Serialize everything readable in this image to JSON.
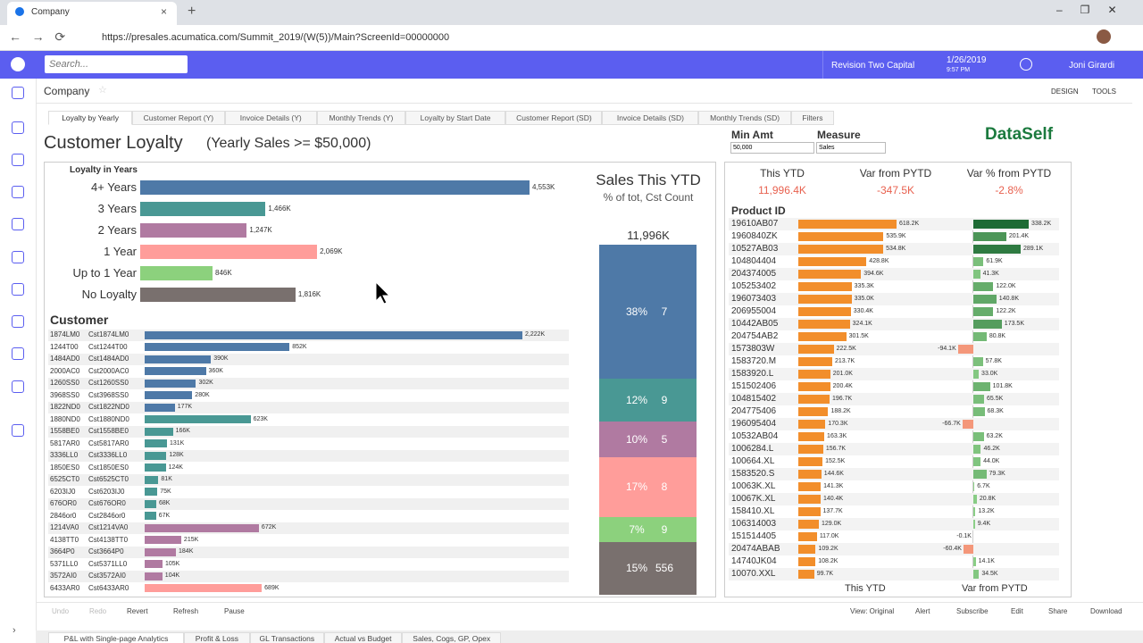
{
  "browser": {
    "tab_title": "Company",
    "url": "https://presales.acumatica.com/Summit_2019/(W(5))/Main?ScreenId=00000000"
  },
  "topbar": {
    "search": "Search...",
    "company": "Revision Two Capital",
    "date": "1/26/2019",
    "time": "9:57 PM",
    "user": "Joni Girardi"
  },
  "page": {
    "title": "Company",
    "design": "DESIGN",
    "tools": "TOOLS"
  },
  "tabs": [
    "Loyalty by Yearly",
    "Customer Report (Y)",
    "Invoice Details (Y)",
    "Monthly Trends (Y)",
    "Loyalty by Start Date",
    "Customer Report (SD)",
    "Invoice Details (SD)",
    "Monthly Trends (SD)",
    "Filters"
  ],
  "dashboard": {
    "title": "Customer Loyalty",
    "subtitle": "(Yearly Sales >= $50,000)"
  },
  "loyalty": {
    "header": "Loyalty in Years",
    "categories": [
      "4+ Years",
      "3 Years",
      "2 Years",
      "1 Year",
      "Up to 1 Year",
      "No Loyalty"
    ],
    "values": [
      4553,
      1466,
      1247,
      2069,
      846,
      1816
    ],
    "value_labels": [
      "4,553K",
      "1,466K",
      "1,247K",
      "2,069K",
      "846K",
      "1,816K"
    ],
    "colors": [
      "#4e79a7",
      "#499894",
      "#b07aa1",
      "#ff9d9a",
      "#8cd17d",
      "#79706e"
    ]
  },
  "customers": {
    "header": "Customer",
    "rows": [
      {
        "id": "1874LM0",
        "name": "Cst1874LM0",
        "value": 2222,
        "label": "2,222K",
        "color": "#4e79a7"
      },
      {
        "id": "1244T00",
        "name": "Cst1244T00",
        "value": 852,
        "label": "852K",
        "color": "#4e79a7"
      },
      {
        "id": "1484AD0",
        "name": "Cst1484AD0",
        "value": 390,
        "label": "390K",
        "color": "#4e79a7"
      },
      {
        "id": "2000AC0",
        "name": "Cst2000AC0",
        "value": 360,
        "label": "360K",
        "color": "#4e79a7"
      },
      {
        "id": "1260SS0",
        "name": "Cst1260SS0",
        "value": 302,
        "label": "302K",
        "color": "#4e79a7"
      },
      {
        "id": "3968SS0",
        "name": "Cst3968SS0",
        "value": 280,
        "label": "280K",
        "color": "#4e79a7"
      },
      {
        "id": "1822ND0",
        "name": "Cst1822ND0",
        "value": 177,
        "label": "177K",
        "color": "#4e79a7"
      },
      {
        "id": "1880ND0",
        "name": "Cst1880ND0",
        "value": 623,
        "label": "623K",
        "color": "#499894"
      },
      {
        "id": "1558BE0",
        "name": "Cst1558BE0",
        "value": 166,
        "label": "166K",
        "color": "#499894"
      },
      {
        "id": "5817AR0",
        "name": "Cst5817AR0",
        "value": 131,
        "label": "131K",
        "color": "#499894"
      },
      {
        "id": "3336LL0",
        "name": "Cst3336LL0",
        "value": 128,
        "label": "128K",
        "color": "#499894"
      },
      {
        "id": "1850ES0",
        "name": "Cst1850ES0",
        "value": 124,
        "label": "124K",
        "color": "#499894"
      },
      {
        "id": "6525CT0",
        "name": "Cst6525CT0",
        "value": 81,
        "label": "81K",
        "color": "#499894"
      },
      {
        "id": "6203IJ0",
        "name": "Cst6203IJ0",
        "value": 75,
        "label": "75K",
        "color": "#499894"
      },
      {
        "id": "676OR0",
        "name": "Cst676OR0",
        "value": 68,
        "label": "68K",
        "color": "#499894"
      },
      {
        "id": "2846or0",
        "name": "Cst2846or0",
        "value": 67,
        "label": "67K",
        "color": "#499894"
      },
      {
        "id": "1214VA0",
        "name": "Cst1214VA0",
        "value": 672,
        "label": "672K",
        "color": "#b07aa1"
      },
      {
        "id": "4138TT0",
        "name": "Cst4138TT0",
        "value": 215,
        "label": "215K",
        "color": "#b07aa1"
      },
      {
        "id": "3664P0",
        "name": "Cst3664P0",
        "value": 184,
        "label": "184K",
        "color": "#b07aa1"
      },
      {
        "id": "5371LL0",
        "name": "Cst5371LL0",
        "value": 105,
        "label": "105K",
        "color": "#b07aa1"
      },
      {
        "id": "3572AI0",
        "name": "Cst3572AI0",
        "value": 104,
        "label": "104K",
        "color": "#b07aa1"
      },
      {
        "id": "6433AR0",
        "name": "Cst6433AR0",
        "value": 689,
        "label": "689K",
        "color": "#ff9d9a"
      }
    ]
  },
  "ytd": {
    "title": "Sales This YTD",
    "subtitle": "% of tot, Cst Count",
    "total": "11,996K",
    "segments": [
      {
        "pct": 38,
        "pct_label": "38%",
        "count": 7,
        "color": "#4e79a7"
      },
      {
        "pct": 12,
        "pct_label": "12%",
        "count": 9,
        "color": "#499894"
      },
      {
        "pct": 10,
        "pct_label": "10%",
        "count": 5,
        "color": "#b07aa1"
      },
      {
        "pct": 17,
        "pct_label": "17%",
        "count": 8,
        "color": "#ff9d9a"
      },
      {
        "pct": 7,
        "pct_label": "7%",
        "count": 9,
        "color": "#8cd17d"
      },
      {
        "pct": 15,
        "pct_label": "15%",
        "count": 556,
        "color": "#79706e"
      }
    ]
  },
  "filters": {
    "min_amt_label": "Min Amt",
    "min_amt": "50,000",
    "measure_label": "Measure",
    "measure": "Sales",
    "logo": "DataSelf"
  },
  "kpis": [
    {
      "label": "This YTD",
      "value": "11,996.4K"
    },
    {
      "label": "Var from PYTD",
      "value": "-347.5K"
    },
    {
      "label": "Var % from PYTD",
      "value": "-2.8%"
    }
  ],
  "products": {
    "header": "Product ID",
    "ytd_footer": "This YTD",
    "var_footer": "Var from PYTD",
    "ytd_color": "#f28e2b",
    "var_color_low": "#8fd28a",
    "var_color_high": "#1e6b35",
    "var_color_negative": "#f4977a",
    "rows": [
      {
        "id": "19610AB07",
        "ytd": 618.2,
        "ytd_label": "618.2K",
        "var": 338.2,
        "var_label": "338.2K"
      },
      {
        "id": "1960840ZK",
        "ytd": 535.9,
        "ytd_label": "535.9K",
        "var": 201.4,
        "var_label": "201.4K"
      },
      {
        "id": "10527AB03",
        "ytd": 534.8,
        "ytd_label": "534.8K",
        "var": 289.1,
        "var_label": "289.1K"
      },
      {
        "id": "104804404",
        "ytd": 428.8,
        "ytd_label": "428.8K",
        "var": 61.9,
        "var_label": "61.9K"
      },
      {
        "id": "204374005",
        "ytd": 394.6,
        "ytd_label": "394.6K",
        "var": 41.3,
        "var_label": "41.3K"
      },
      {
        "id": "105253402",
        "ytd": 335.3,
        "ytd_label": "335.3K",
        "var": 122,
        "var_label": "122.0K"
      },
      {
        "id": "196073403",
        "ytd": 335,
        "ytd_label": "335.0K",
        "var": 140.8,
        "var_label": "140.8K"
      },
      {
        "id": "206955004",
        "ytd": 330.4,
        "ytd_label": "330.4K",
        "var": 122.2,
        "var_label": "122.2K"
      },
      {
        "id": "10442AB05",
        "ytd": 324.1,
        "ytd_label": "324.1K",
        "var": 173.5,
        "var_label": "173.5K"
      },
      {
        "id": "204754AB2",
        "ytd": 301.5,
        "ytd_label": "301.5K",
        "var": 80.8,
        "var_label": "80.8K"
      },
      {
        "id": "1573803W",
        "ytd": 222.5,
        "ytd_label": "222.5K",
        "var": -94.1,
        "var_label": "-94.1K"
      },
      {
        "id": "1583720.M",
        "ytd": 213.7,
        "ytd_label": "213.7K",
        "var": 57.8,
        "var_label": "57.8K"
      },
      {
        "id": "1583920.L",
        "ytd": 201,
        "ytd_label": "201.0K",
        "var": 33,
        "var_label": "33.0K"
      },
      {
        "id": "151502406",
        "ytd": 200.4,
        "ytd_label": "200.4K",
        "var": 101.8,
        "var_label": "101.8K"
      },
      {
        "id": "104815402",
        "ytd": 196.7,
        "ytd_label": "196.7K",
        "var": 65.5,
        "var_label": "65.5K"
      },
      {
        "id": "204775406",
        "ytd": 188.2,
        "ytd_label": "188.2K",
        "var": 68.3,
        "var_label": "68.3K"
      },
      {
        "id": "196095404",
        "ytd": 170.3,
        "ytd_label": "170.3K",
        "var": -66.7,
        "var_label": "-66.7K"
      },
      {
        "id": "10532AB04",
        "ytd": 163.3,
        "ytd_label": "163.3K",
        "var": 63.2,
        "var_label": "63.2K"
      },
      {
        "id": "1006284.L",
        "ytd": 156.7,
        "ytd_label": "156.7K",
        "var": 46.2,
        "var_label": "46.2K"
      },
      {
        "id": "100664.XL",
        "ytd": 152.5,
        "ytd_label": "152.5K",
        "var": 44,
        "var_label": "44.0K"
      },
      {
        "id": "1583520.S",
        "ytd": 144.6,
        "ytd_label": "144.6K",
        "var": 79.3,
        "var_label": "79.3K"
      },
      {
        "id": "10063K.XL",
        "ytd": 141.3,
        "ytd_label": "141.3K",
        "var": 6.7,
        "var_label": "6.7K"
      },
      {
        "id": "10067K.XL",
        "ytd": 140.4,
        "ytd_label": "140.4K",
        "var": 20.8,
        "var_label": "20.8K"
      },
      {
        "id": "158410.XL",
        "ytd": 137.7,
        "ytd_label": "137.7K",
        "var": 13.2,
        "var_label": "13.2K"
      },
      {
        "id": "106314003",
        "ytd": 129,
        "ytd_label": "129.0K",
        "var": 9.4,
        "var_label": "9.4K"
      },
      {
        "id": "151514405",
        "ytd": 117,
        "ytd_label": "117.0K",
        "var": -0.1,
        "var_label": "-0.1K"
      },
      {
        "id": "20474ABAB",
        "ytd": 109.2,
        "ytd_label": "109.2K",
        "var": -60.4,
        "var_label": "-60.4K"
      },
      {
        "id": "14740JK04",
        "ytd": 108.2,
        "ytd_label": "108.2K",
        "var": 14.1,
        "var_label": "14.1K"
      },
      {
        "id": "10070.XXL",
        "ytd": 99.7,
        "ytd_label": "99.7K",
        "var": 34.5,
        "var_label": "34.5K"
      }
    ]
  },
  "toolbar": {
    "left": [
      "Undo",
      "Redo",
      "Revert",
      "Refresh",
      "Pause"
    ],
    "right": [
      "View: Original",
      "Alert",
      "Subscribe",
      "Edit",
      "Share",
      "Download"
    ]
  },
  "bottom_tabs": [
    "P&L with Single-page Analytics",
    "Profit & Loss",
    "GL Transactions",
    "Actual vs Budget",
    "Sales, Cogs, GP, Opex"
  ]
}
